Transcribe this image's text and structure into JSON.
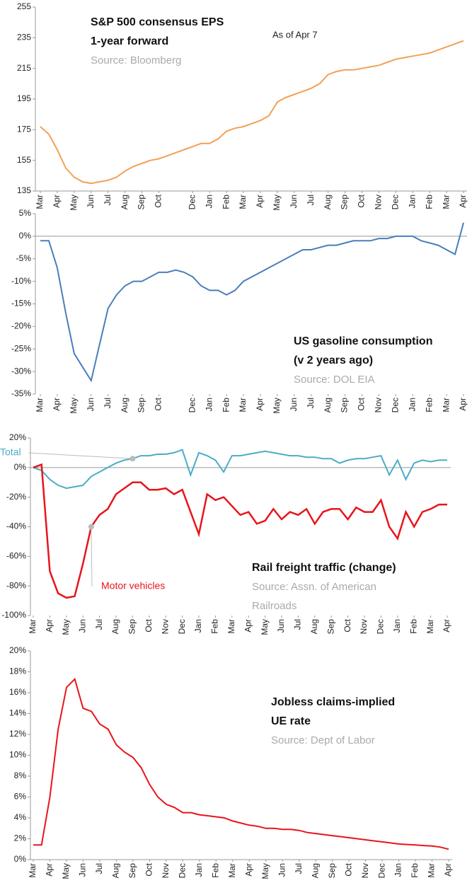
{
  "chart_data": [
    {
      "type": "line",
      "title": [
        "S&P 500 consensus EPS",
        "1-year forward"
      ],
      "source": [
        "Source: Bloomberg"
      ],
      "annotation": "As of Apr 7",
      "categories": [
        "Mar",
        null,
        "Apr",
        null,
        "May",
        null,
        "Jun",
        null,
        "Jul",
        null,
        "Aug",
        null,
        "Sep",
        null,
        "Oct",
        null,
        null,
        null,
        "Dec",
        null,
        "Jan",
        null,
        "Feb",
        null,
        "Mar",
        null,
        "Apr",
        null,
        "May",
        null,
        "Jun",
        null,
        "Jul",
        null,
        "Aug",
        null,
        "Sep",
        null,
        "Oct",
        null,
        "Nov",
        null,
        "Dec",
        null,
        "Jan",
        null,
        "Feb",
        null,
        "Mar",
        null,
        "Apr"
      ],
      "series": [
        {
          "name": null,
          "color": "#f2a057",
          "values": [
            177,
            172,
            162,
            150,
            144,
            141,
            140,
            141,
            142,
            144,
            148,
            151,
            153,
            155,
            156,
            158,
            160,
            162,
            164,
            166,
            166,
            169,
            174,
            176,
            177,
            179,
            181,
            184,
            193,
            196,
            198,
            200,
            202,
            205,
            211,
            213,
            214,
            214,
            215,
            216,
            217,
            219,
            221,
            222,
            223,
            224,
            225,
            227,
            229,
            231,
            233
          ]
        }
      ],
      "ylim": [
        135,
        255
      ],
      "yticks": [
        135,
        155,
        175,
        195,
        215,
        235,
        255
      ],
      "zero_line": false
    },
    {
      "type": "line",
      "title": [
        "US gasoline consumption",
        "(v 2 years ago)"
      ],
      "source": [
        "Source: DOL EIA"
      ],
      "categories": [
        "Mar",
        null,
        "Apr",
        null,
        "May",
        null,
        "Jun",
        null,
        "Jul",
        null,
        "Aug",
        null,
        "Sep",
        null,
        "Oct",
        null,
        null,
        null,
        "Dec",
        null,
        "Jan",
        null,
        "Feb",
        null,
        "Mar",
        null,
        "Apr",
        null,
        "May",
        null,
        "Jun",
        null,
        "Jul",
        null,
        "Aug",
        null,
        "Sep",
        null,
        "Oct",
        null,
        "Nov",
        null,
        "Dec",
        null,
        "Jan",
        null,
        "Feb",
        null,
        "Mar",
        null,
        "Apr"
      ],
      "series": [
        {
          "name": null,
          "color": "#4a7ebb",
          "values": [
            -1,
            -1,
            -7,
            -17,
            -26,
            -29,
            -32,
            -24,
            -16,
            -13,
            -11,
            -10,
            -10,
            -9,
            -8,
            -8,
            -7.5,
            -8,
            -9,
            -11,
            -12,
            -12,
            -13,
            -12,
            -10,
            -9,
            -8,
            -7,
            -6,
            -5,
            -4,
            -3,
            -3,
            -2.5,
            -2,
            -2,
            -1.5,
            -1,
            -1,
            -1,
            -0.5,
            -0.5,
            0,
            0,
            0,
            -1,
            -1.5,
            -2,
            -3,
            -4,
            3
          ]
        }
      ],
      "ylim": [
        -35,
        5
      ],
      "yticks": [
        {
          "value": -35,
          "label": "-35%"
        },
        {
          "value": -30,
          "label": "-30%"
        },
        {
          "value": -25,
          "label": "-25%"
        },
        {
          "value": -20,
          "label": "-20%"
        },
        {
          "value": -15,
          "label": "-15%"
        },
        {
          "value": -10,
          "label": "-10%"
        },
        {
          "value": -5,
          "label": "-5%"
        },
        {
          "value": 0,
          "label": "0%"
        },
        {
          "value": 5,
          "label": "5%"
        }
      ],
      "zero_line": true
    },
    {
      "type": "line",
      "title": [
        "Rail freight traffic (change)"
      ],
      "source": [
        "Source: Assn. of American",
        "Railroads"
      ],
      "categories": [
        "Mar",
        null,
        "Apr",
        null,
        "May",
        null,
        "Jun",
        null,
        "Jul",
        null,
        "Aug",
        null,
        "Sep",
        null,
        "Oct",
        null,
        "Nov",
        null,
        "Dec",
        null,
        "Jan",
        null,
        "Feb",
        null,
        "Mar",
        null,
        "Apr",
        null,
        "May",
        null,
        "Jun",
        null,
        "Jul",
        null,
        "Aug",
        null,
        "Sep",
        null,
        "Oct",
        null,
        "Nov",
        null,
        "Dec",
        null,
        "Jan",
        null,
        "Feb",
        null,
        "Mar",
        null,
        "Apr"
      ],
      "series": [
        {
          "name": "Total",
          "color": "#4bacc6",
          "values": [
            0,
            -2,
            -8,
            -12,
            -14,
            -13,
            -12,
            -6,
            -3,
            0,
            3,
            5,
            6,
            8,
            8,
            9,
            9,
            10,
            12,
            -5,
            10,
            8,
            5,
            -3,
            8,
            8,
            9,
            10,
            11,
            10,
            9,
            8,
            8,
            7,
            7,
            6,
            6,
            3,
            5,
            6,
            6,
            7,
            8,
            -5,
            5,
            -8,
            3,
            5,
            4,
            5,
            5
          ]
        },
        {
          "name": "Motor vehicles",
          "color": "#e8141b",
          "values": [
            0,
            2,
            -70,
            -85,
            -88,
            -87,
            -65,
            -40,
            -32,
            -28,
            -18,
            -14,
            -10,
            -10,
            -15,
            -15,
            -14,
            -18,
            -15,
            -30,
            -45,
            -18,
            -22,
            -20,
            -26,
            -32,
            -30,
            -38,
            -36,
            -28,
            -35,
            -30,
            -32,
            -28,
            -38,
            -30,
            -28,
            -28,
            -35,
            -27,
            -30,
            -30,
            -22,
            -40,
            -48,
            -30,
            -40,
            -30,
            -28,
            -25,
            -25
          ]
        }
      ],
      "ylim": [
        -100,
        20
      ],
      "yticks": [
        {
          "value": -100,
          "label": "-100%"
        },
        {
          "value": -80,
          "label": "-80%"
        },
        {
          "value": -60,
          "label": "-60%"
        },
        {
          "value": -40,
          "label": "-40%"
        },
        {
          "value": -20,
          "label": "-20%"
        },
        {
          "value": 0,
          "label": "0%"
        },
        {
          "value": 20,
          "label": "20%"
        }
      ],
      "zero_line": true
    },
    {
      "type": "line",
      "title": [
        "Jobless claims-implied",
        "UE rate"
      ],
      "source": [
        "Source: Dept of Labor"
      ],
      "categories": [
        "Mar",
        null,
        "Apr",
        null,
        "May",
        null,
        "Jun",
        null,
        "Jul",
        null,
        "Aug",
        null,
        "Sep",
        null,
        "Oct",
        null,
        "Nov",
        null,
        "Dec",
        null,
        "Jan",
        null,
        "Feb",
        null,
        "Mar",
        null,
        "Apr",
        null,
        "May",
        null,
        "Jun",
        null,
        "Jul",
        null,
        "Aug",
        null,
        "Sep",
        null,
        "Oct",
        null,
        "Nov",
        null,
        "Dec",
        null,
        "Jan",
        null,
        "Feb",
        null,
        "Mar",
        null,
        "Apr"
      ],
      "series": [
        {
          "name": null,
          "color": "#e8141b",
          "values": [
            1.4,
            1.4,
            6,
            12.5,
            16.5,
            17.3,
            14.5,
            14.2,
            13,
            12.5,
            11,
            10.3,
            9.8,
            8.8,
            7.2,
            6,
            5.3,
            5,
            4.5,
            4.5,
            4.3,
            4.2,
            4.1,
            4,
            3.7,
            3.5,
            3.3,
            3.2,
            3,
            3,
            2.9,
            2.9,
            2.8,
            2.6,
            2.5,
            2.4,
            2.3,
            2.2,
            2.1,
            2,
            1.9,
            1.8,
            1.7,
            1.6,
            1.5,
            1.45,
            1.4,
            1.35,
            1.3,
            1.2,
            1
          ]
        }
      ],
      "ylim": [
        0,
        20
      ],
      "yticks": [
        {
          "value": 0,
          "label": "0%"
        },
        {
          "value": 2,
          "label": "2%"
        },
        {
          "value": 4,
          "label": "4%"
        },
        {
          "value": 6,
          "label": "6%"
        },
        {
          "value": 8,
          "label": "8%"
        },
        {
          "value": 10,
          "label": "10%"
        },
        {
          "value": 12,
          "label": "12%"
        },
        {
          "value": 14,
          "label": "14%"
        },
        {
          "value": 16,
          "label": "16%"
        },
        {
          "value": 18,
          "label": "18%"
        },
        {
          "value": 20,
          "label": "20%"
        }
      ],
      "zero_line": false
    }
  ]
}
